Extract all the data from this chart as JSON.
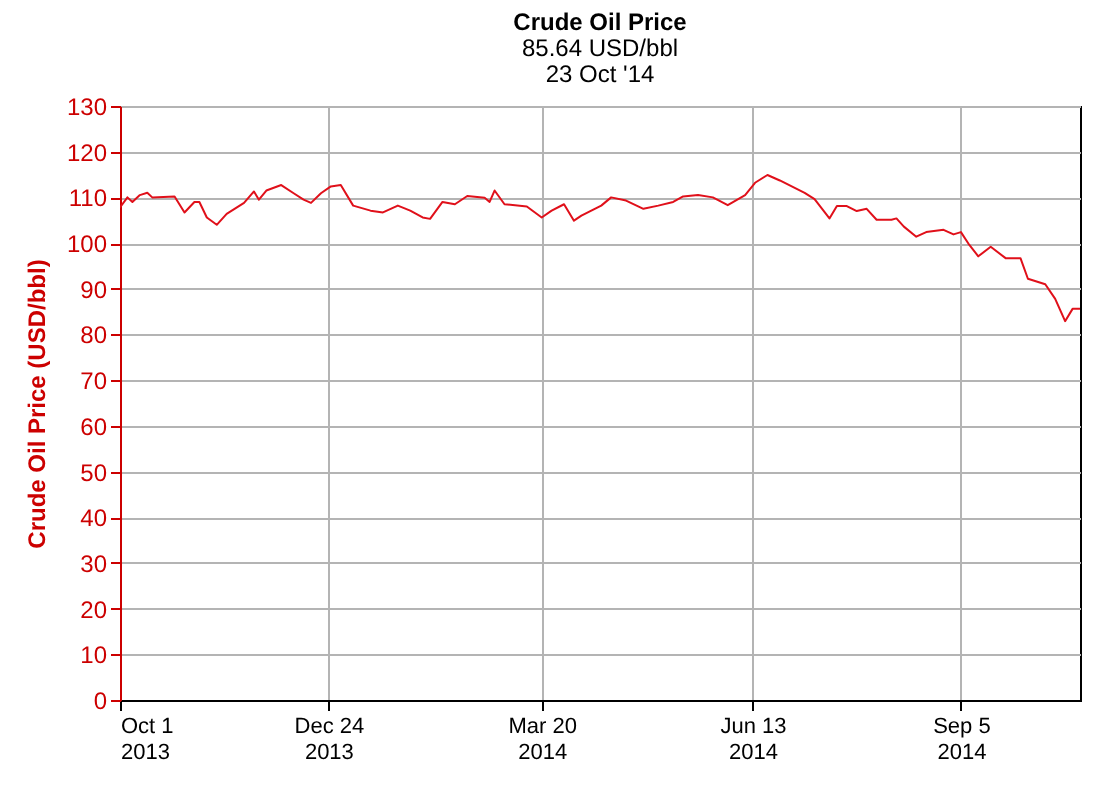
{
  "chart_data": {
    "type": "line",
    "title": "Crude Oil Price",
    "subtitle": "85.64 USD/bbl\n23 Oct '14",
    "ylabel": "Crude Oil Price (USD/bbl)",
    "x": [
      "2013-10-01",
      "2013-10-04",
      "2013-10-06",
      "2013-10-09",
      "2013-10-12",
      "2013-10-14",
      "2013-10-23",
      "2013-10-27",
      "2013-10-31",
      "2013-11-02",
      "2013-11-05",
      "2013-11-09",
      "2013-11-13",
      "2013-11-20",
      "2013-11-24",
      "2013-11-26",
      "2013-11-29",
      "2013-12-05",
      "2013-12-10",
      "2013-12-14",
      "2013-12-17",
      "2013-12-21",
      "2013-12-25",
      "2013-12-29",
      "2014-01-03",
      "2014-01-10",
      "2014-01-15",
      "2014-01-21",
      "2014-01-26",
      "2014-01-31",
      "2014-02-03",
      "2014-02-08",
      "2014-02-13",
      "2014-02-18",
      "2014-02-25",
      "2014-02-27",
      "2014-03-01",
      "2014-03-05",
      "2014-03-14",
      "2014-03-20",
      "2014-03-24",
      "2014-03-29",
      "2014-04-02",
      "2014-04-05",
      "2014-04-09",
      "2014-04-13",
      "2014-04-17",
      "2014-04-23",
      "2014-04-30",
      "2014-05-06",
      "2014-05-12",
      "2014-05-16",
      "2014-05-22",
      "2014-05-28",
      "2014-06-03",
      "2014-06-10",
      "2014-06-14",
      "2014-06-19",
      "2014-06-24",
      "2014-07-04",
      "2014-07-08",
      "2014-07-14",
      "2014-07-17",
      "2014-07-21",
      "2014-07-25",
      "2014-07-29",
      "2014-08-02",
      "2014-08-08",
      "2014-08-10",
      "2014-08-13",
      "2014-08-18",
      "2014-08-22",
      "2014-08-29",
      "2014-09-02",
      "2014-09-05",
      "2014-09-08",
      "2014-09-12",
      "2014-09-17",
      "2014-09-23",
      "2014-09-29",
      "2014-10-02",
      "2014-10-09",
      "2014-10-13",
      "2014-10-17",
      "2014-10-20",
      "2014-10-23"
    ],
    "series": [
      {
        "color": "#e0101a",
        "values": [
          107.8,
          110,
          109,
          110.5,
          111,
          110,
          110.2,
          106.7,
          109,
          109,
          105.6,
          104,
          106.4,
          108.8,
          111.3,
          109.5,
          111.5,
          112.7,
          110.9,
          109.5,
          108.8,
          110.9,
          112.4,
          112.7,
          108.2,
          107.1,
          106.7,
          108.2,
          107.1,
          105.6,
          105.3,
          109,
          108.5,
          110.3,
          109.9,
          109,
          111.5,
          108.5,
          108,
          105.6,
          107.1,
          108.5,
          104.9,
          106,
          107.1,
          108.2,
          110,
          109.3,
          107.5,
          108.2,
          109,
          110.2,
          110.5,
          110,
          108.3,
          110.5,
          113.2,
          114.9,
          113.7,
          111,
          109.6,
          105.4,
          108.1,
          108.1,
          107,
          107.5,
          105.1,
          105.1,
          105.4,
          103.6,
          101.4,
          102.4,
          102.9,
          101.9,
          102.4,
          99.9,
          97.1,
          99.2,
          96.7,
          96.7,
          92.2,
          91,
          87.8,
          82.9,
          85.6,
          85.6
        ]
      }
    ],
    "xlim": [
      "2013-10-01",
      "2014-10-23"
    ],
    "xticks": [
      {
        "value": "2013-10-01",
        "label": "Oct 1\n2013"
      },
      {
        "value": "2013-12-24",
        "label": "Dec 24\n2013"
      },
      {
        "value": "2014-03-20",
        "label": "Mar 20\n2014"
      },
      {
        "value": "2014-06-13",
        "label": "Jun 13\n2014"
      },
      {
        "value": "2014-09-05",
        "label": "Sep 5\n2014"
      }
    ],
    "ylim": [
      0,
      130
    ],
    "yticks": [
      0,
      10,
      20,
      30,
      40,
      50,
      60,
      70,
      80,
      90,
      100,
      110,
      120,
      130
    ],
    "grid": true
  }
}
